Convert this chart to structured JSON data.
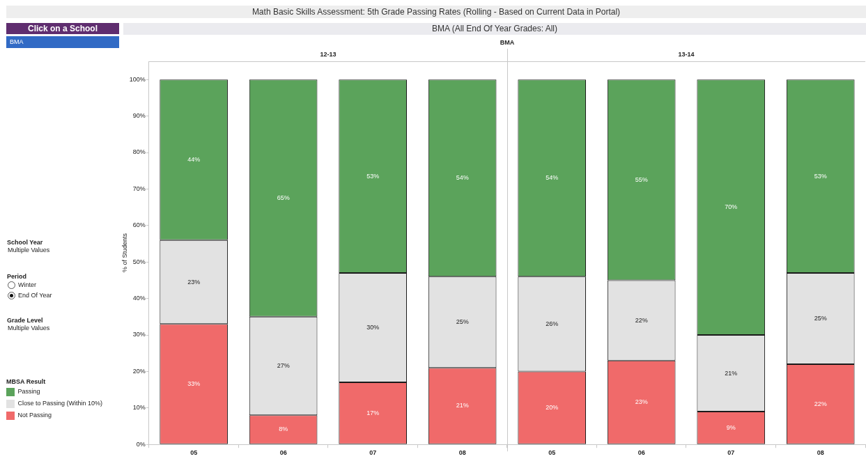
{
  "chart_data": {
    "type": "bar",
    "title": "Math Basic Skills Assessment: 5th Grade Passing Rates (Rolling - Based on Current Data in Portal)",
    "subtitle": "BMA (All End Of Year Grades: All)",
    "ylabel": "% of Students",
    "legend_title": "MBSA Result",
    "annotations": [
      "BMA",
      "12-13",
      "13-14",
      "Click on a School",
      "BMA",
      "School Year",
      "Multiple Values",
      "Period",
      "Winter",
      "End Of Year",
      "Grade Level",
      "Multiple Values"
    ],
    "categories": [
      "05",
      "06",
      "07",
      "08",
      "05",
      "06",
      "07",
      "08"
    ],
    "stacked": true,
    "legend": "left",
    "ylim": [
      0,
      105
    ],
    "yticks": [
      {
        "value": 0,
        "label": "0%"
      },
      {
        "value": 10,
        "label": "10%"
      },
      {
        "value": 20,
        "label": "20%"
      },
      {
        "value": 30,
        "label": "30%"
      },
      {
        "value": 40,
        "label": "40%"
      },
      {
        "value": 50,
        "label": "50%"
      },
      {
        "value": 60,
        "label": "60%"
      },
      {
        "value": 70,
        "label": "70%"
      },
      {
        "value": 80,
        "label": "80%"
      },
      {
        "value": 90,
        "label": "90%"
      },
      {
        "value": 100,
        "label": "100%"
      }
    ],
    "series": [
      {
        "name": "Not Passing",
        "color": "#f06a6a",
        "values": [
          33,
          8,
          17,
          21,
          20,
          23,
          9,
          22
        ],
        "value_labels": [
          "33%",
          "8%",
          "17%",
          "21%",
          "20%",
          "23%",
          "9%",
          "22%"
        ]
      },
      {
        "name": "Close to Passing (Within 10%)",
        "color": "#e2e2e2",
        "values": [
          23,
          27,
          30,
          25,
          26,
          22,
          21,
          25
        ],
        "value_labels": [
          "23%",
          "27%",
          "30%",
          "25%",
          "26%",
          "22%",
          "21%",
          "25%"
        ]
      },
      {
        "name": "Passing",
        "color": "#5ba35b",
        "values": [
          44,
          65,
          53,
          54,
          54,
          55,
          70,
          53
        ],
        "value_labels": [
          "44%",
          "65%",
          "53%",
          "54%",
          "54%",
          "55%",
          "70%",
          "53%"
        ]
      }
    ]
  }
}
